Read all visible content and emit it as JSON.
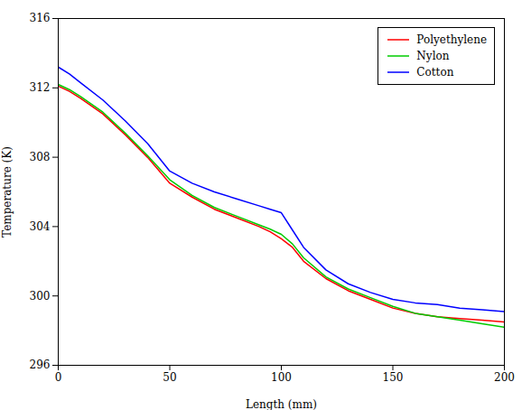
{
  "chart_data": {
    "type": "line",
    "xlabel": "Length (mm)",
    "ylabel": "Temperature (K)",
    "x": [
      0,
      5,
      10,
      20,
      30,
      40,
      50,
      60,
      70,
      80,
      90,
      95,
      100,
      105,
      110,
      120,
      130,
      140,
      150,
      160,
      170,
      180,
      190,
      200
    ],
    "series": [
      {
        "name": "Polyethylene",
        "color": "#ff0000",
        "values": [
          312.1,
          311.8,
          311.4,
          310.5,
          309.3,
          308.0,
          306.5,
          305.7,
          305.0,
          304.5,
          304.0,
          303.7,
          303.3,
          302.8,
          302.0,
          301.0,
          300.3,
          299.8,
          299.3,
          299.0,
          298.8,
          298.7,
          298.6,
          298.5
        ]
      },
      {
        "name": "Nylon",
        "color": "#00cc00",
        "values": [
          312.2,
          311.9,
          311.5,
          310.6,
          309.4,
          308.1,
          306.7,
          305.8,
          305.1,
          304.6,
          304.1,
          303.85,
          303.55,
          303.0,
          302.2,
          301.1,
          300.4,
          299.9,
          299.4,
          299.0,
          298.8,
          298.6,
          298.4,
          298.2
        ]
      },
      {
        "name": "Cotton",
        "color": "#0000ff",
        "values": [
          313.2,
          312.8,
          312.3,
          311.3,
          310.1,
          308.8,
          307.2,
          306.5,
          306.0,
          305.6,
          305.2,
          305.0,
          304.8,
          303.8,
          302.8,
          301.5,
          300.7,
          300.2,
          299.8,
          299.6,
          299.5,
          299.3,
          299.2,
          299.1
        ]
      }
    ],
    "xlim": [
      0,
      200
    ],
    "ylim": [
      296,
      316
    ],
    "xticks": [
      0,
      50,
      100,
      150,
      200
    ],
    "yticks": [
      296,
      300,
      304,
      308,
      312,
      316
    ],
    "grid": false,
    "legend": "upper right"
  }
}
